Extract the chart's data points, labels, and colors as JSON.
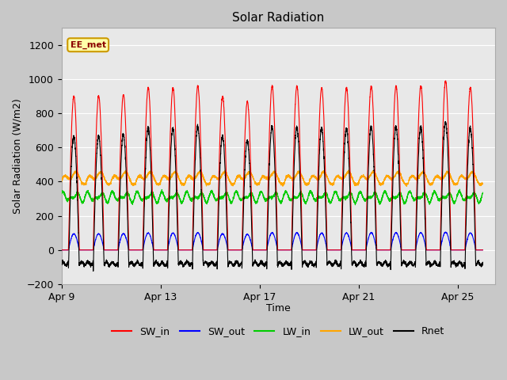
{
  "title": "Solar Radiation",
  "ylabel": "Solar Radiation (W/m2)",
  "xlabel": "Time",
  "ylim": [
    -200,
    1300
  ],
  "yticks": [
    -200,
    0,
    200,
    400,
    600,
    800,
    1000,
    1200
  ],
  "xtick_positions": [
    0,
    4,
    8,
    12,
    16
  ],
  "xtick_labels": [
    "Apr 9",
    "Apr 13",
    "Apr 17",
    "Apr 21",
    "Apr 25"
  ],
  "annotation_text": "EE_met",
  "colors": {
    "SW_in": "#ff0000",
    "SW_out": "#0000ff",
    "LW_in": "#00cc00",
    "LW_out": "#ffa500",
    "Rnet": "#000000"
  },
  "num_days": 17,
  "pts_per_day": 288,
  "SW_in_peak_variation": [
    900,
    900,
    910,
    950,
    950,
    960,
    900,
    870,
    960,
    960,
    950,
    950,
    960,
    960,
    960,
    990,
    950
  ],
  "LW_in_base": 310,
  "LW_out_base": 390,
  "Rnet_night": -80
}
